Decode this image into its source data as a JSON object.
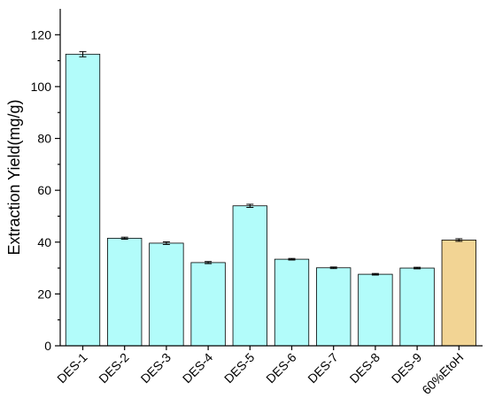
{
  "chart_data": {
    "type": "bar",
    "title": "",
    "xlabel": "",
    "ylabel": "Extraction Yield(mg/g)",
    "ylim": [
      0,
      130
    ],
    "yticks": [
      0,
      20,
      40,
      60,
      80,
      100,
      120
    ],
    "categories": [
      "DES-1",
      "DES-2",
      "DES-3",
      "DES-4",
      "DES-5",
      "DES-6",
      "DES-7",
      "DES-8",
      "DES-9",
      "60%EtoH"
    ],
    "values": [
      112.5,
      41.5,
      39.6,
      32.1,
      54.0,
      33.4,
      30.1,
      27.6,
      30.0,
      40.8
    ],
    "errors": [
      1.0,
      0.4,
      0.5,
      0.4,
      0.6,
      0.3,
      0.3,
      0.3,
      0.3,
      0.5
    ],
    "colors": [
      "#b2fcfa",
      "#b2fcfa",
      "#b2fcfa",
      "#b2fcfa",
      "#b2fcfa",
      "#b2fcfa",
      "#b2fcfa",
      "#b2fcfa",
      "#b2fcfa",
      "#f2d494"
    ],
    "grid": false,
    "legend": "none"
  }
}
